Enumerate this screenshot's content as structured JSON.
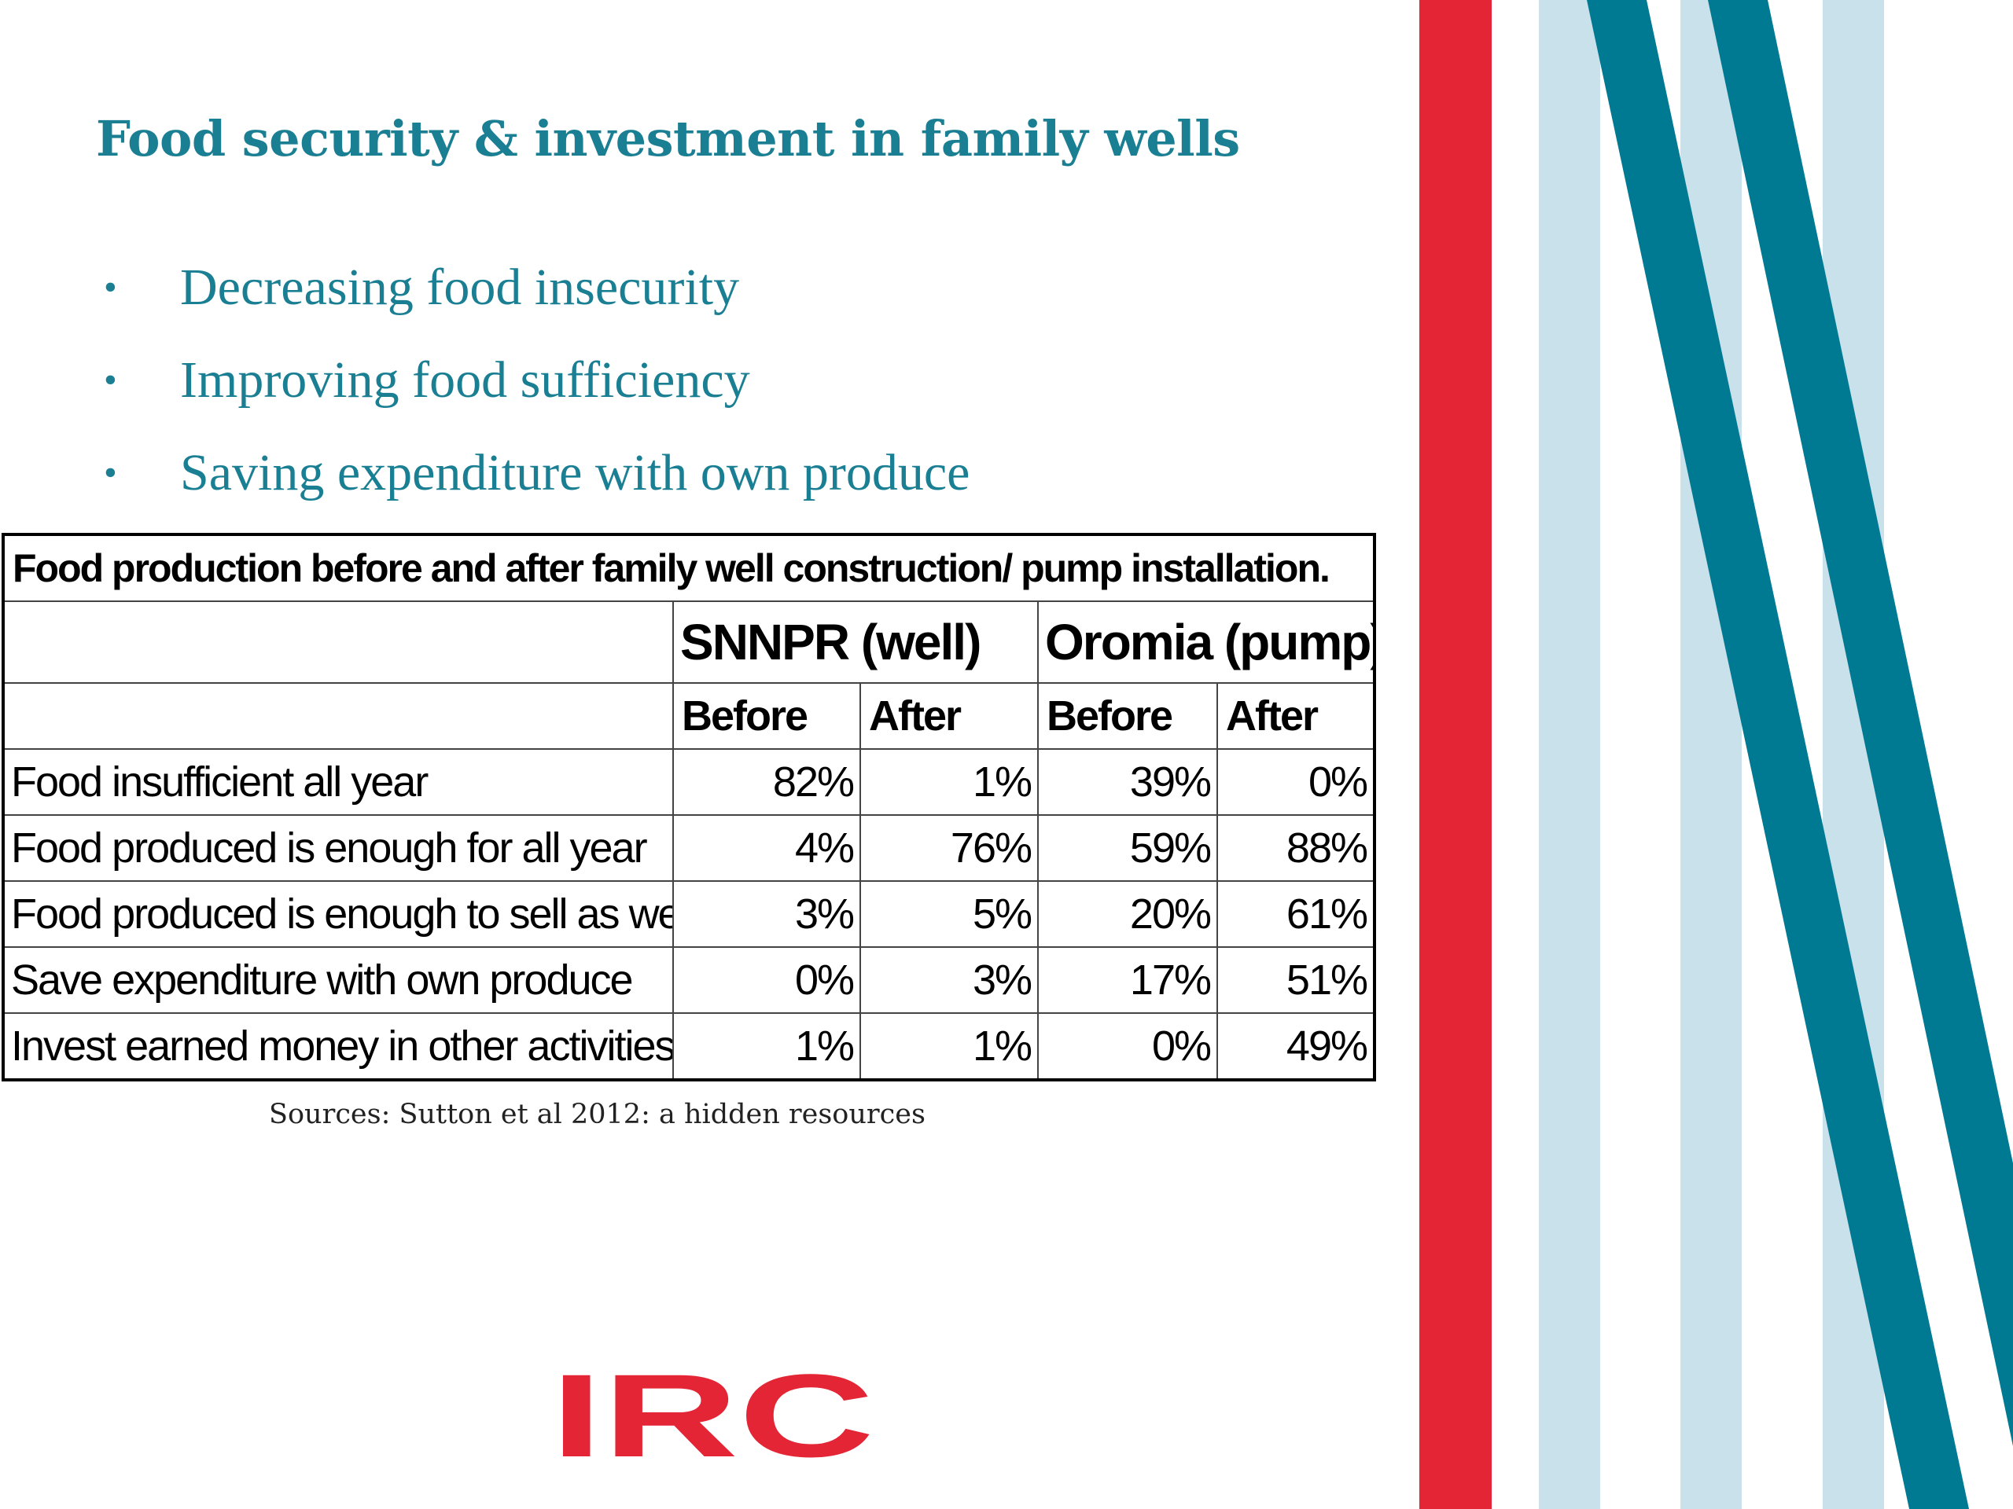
{
  "slide": {
    "title": "Food security & investment in family wells",
    "bullets": [
      "Decreasing food insecurity",
      "Improving food sufficiency",
      "Saving expenditure with own produce"
    ],
    "bullet_glyph": "•"
  },
  "table": {
    "caption": "Food production before and after family well construction/ pump installation.",
    "regions": [
      "SNNPR (well)",
      "Oromia (pump)"
    ],
    "phases": [
      "Before",
      "After",
      "Before",
      "After"
    ],
    "rows": [
      {
        "label": "Food insufficient all year",
        "values": [
          "82%",
          "1%",
          "39%",
          "0%"
        ]
      },
      {
        "label": "Food produced is enough for all year",
        "values": [
          "4%",
          "76%",
          "59%",
          "88%"
        ]
      },
      {
        "label": "Food produced is enough to sell as well",
        "values": [
          "3%",
          "5%",
          "20%",
          "61%"
        ]
      },
      {
        "label": "Save expenditure with own produce",
        "values": [
          "0%",
          "3%",
          "17%",
          "51%"
        ]
      },
      {
        "label": "Invest earned money in other activities",
        "values": [
          "1%",
          "1%",
          "0%",
          "49%"
        ]
      }
    ]
  },
  "source": "Sources: Sutton et al 2012: a hidden resources",
  "logo": {
    "text": "IRC"
  },
  "colors": {
    "accent_teal": "#1b7f93",
    "stripe_red": "#e42535",
    "stripe_teal": "#007a93",
    "stripe_light": "#c8e1ea",
    "logo_red": "#e42535"
  }
}
